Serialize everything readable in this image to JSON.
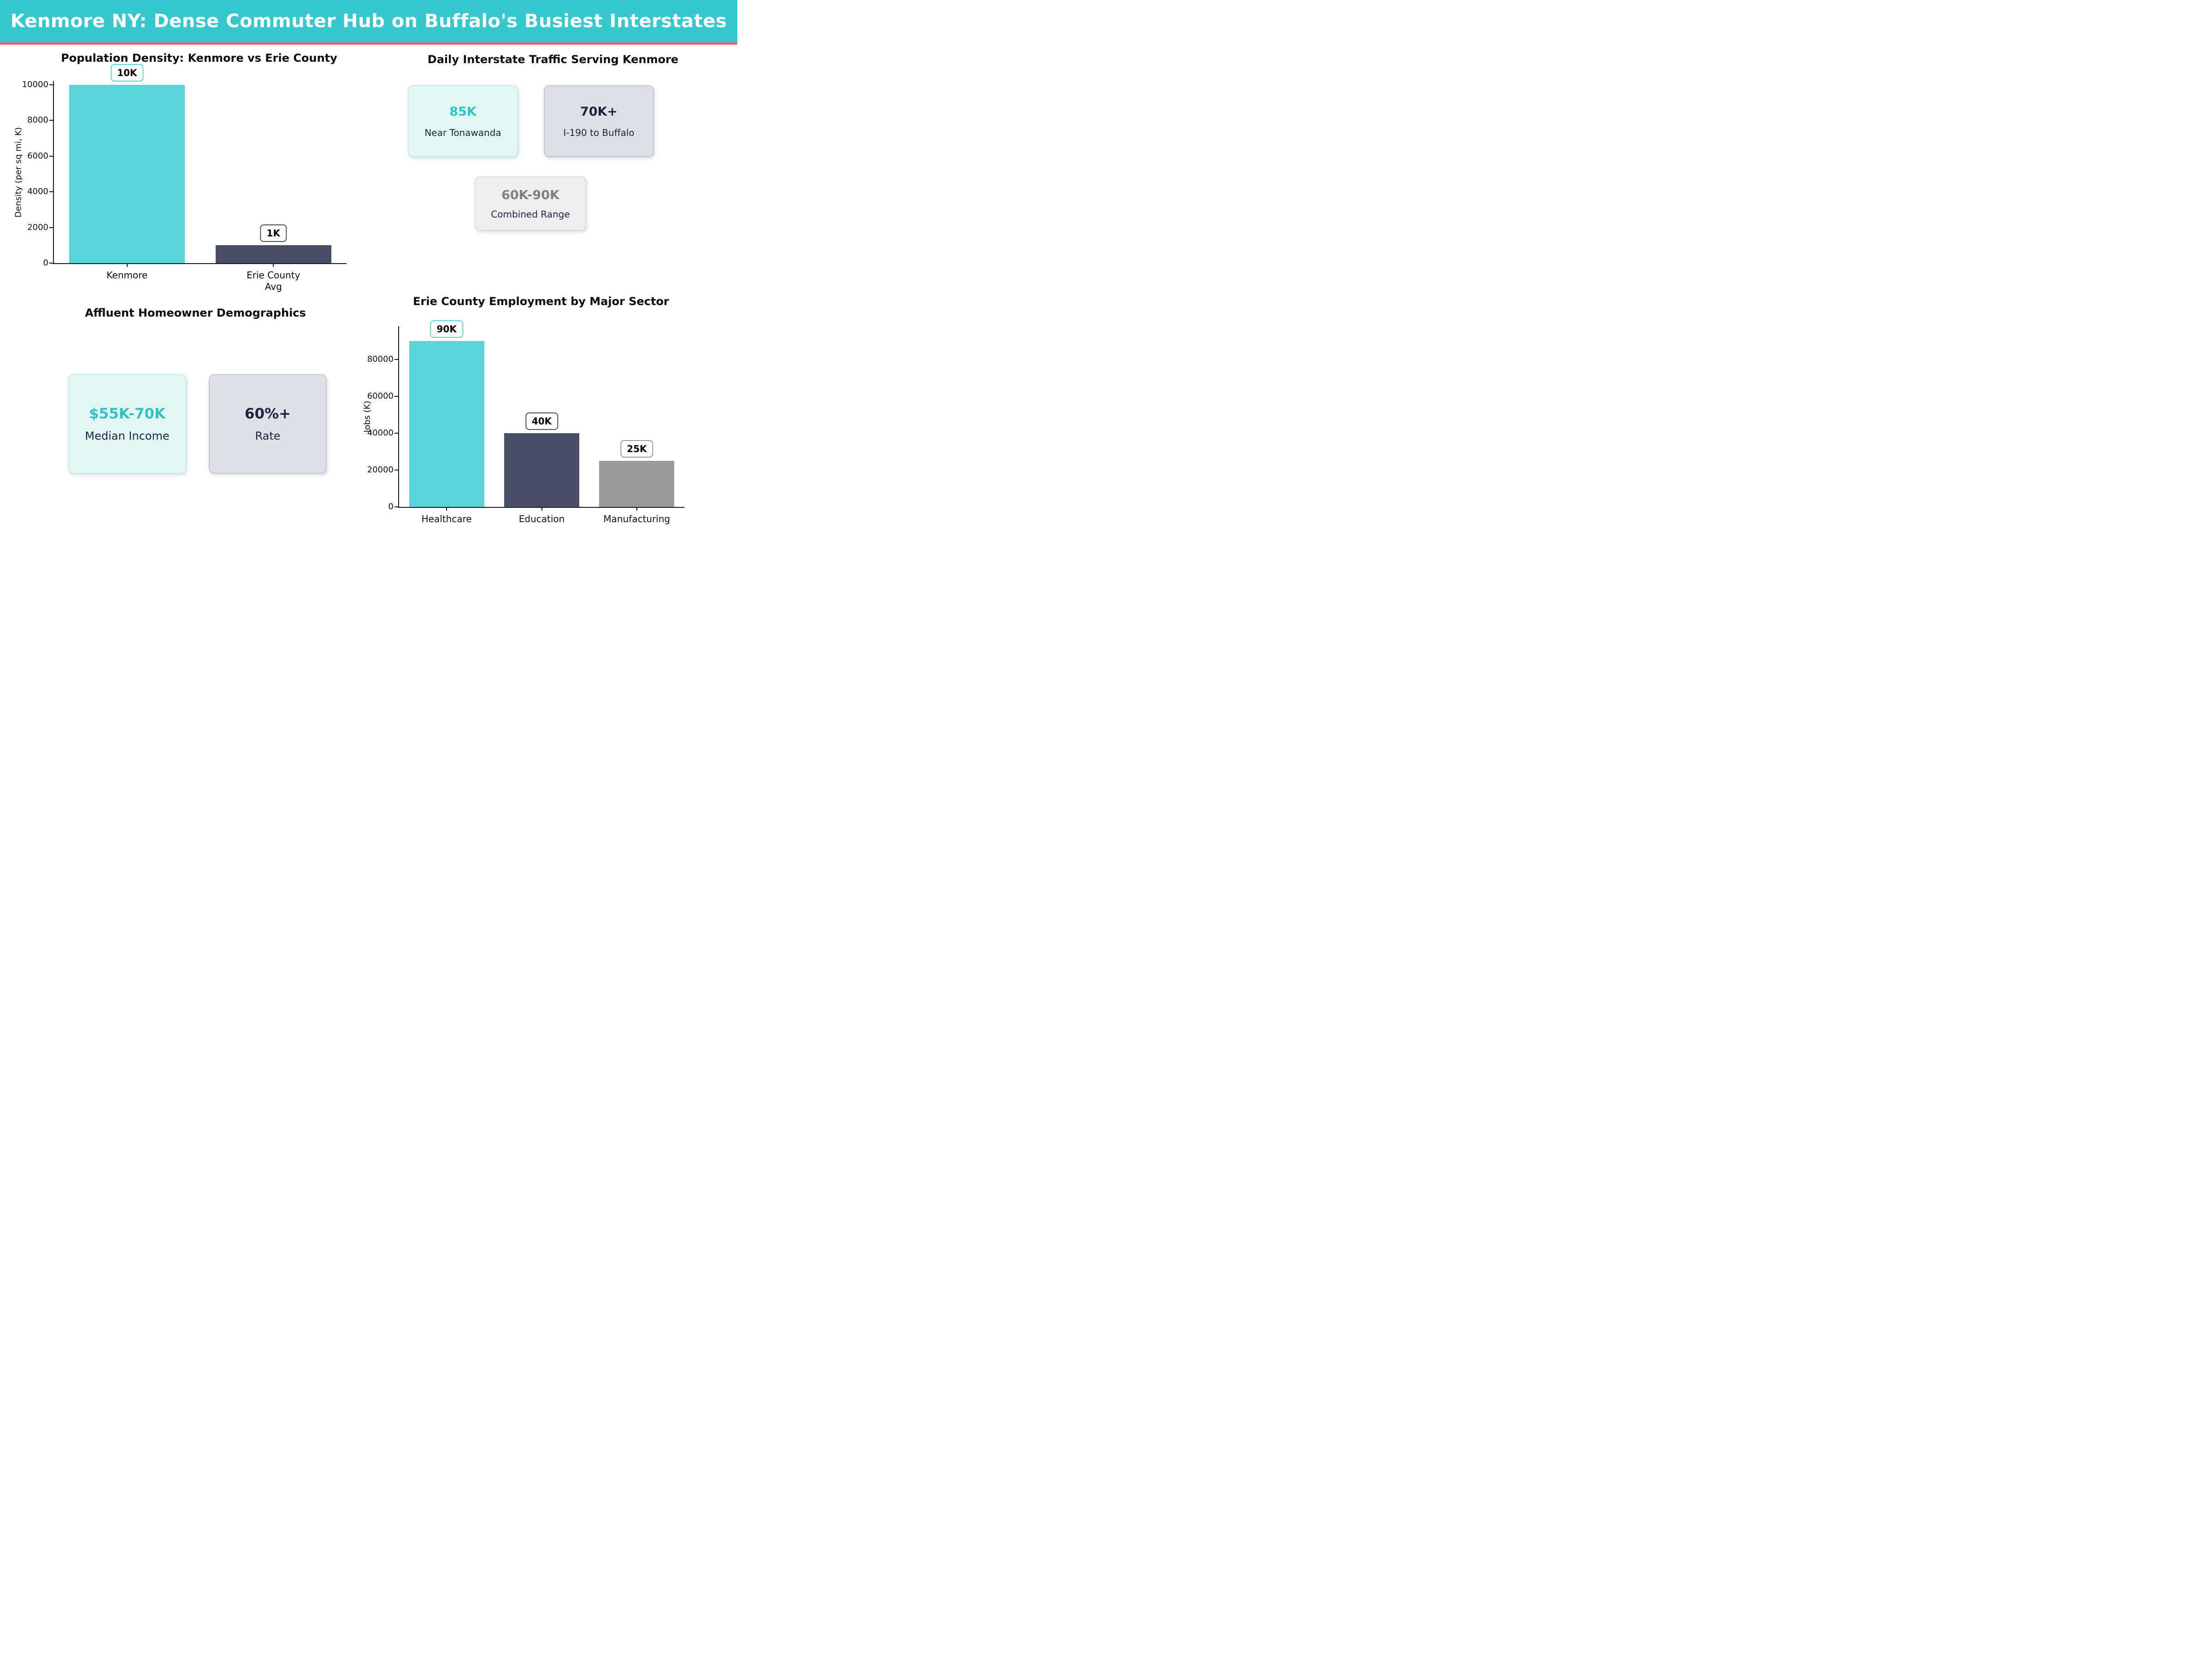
{
  "header": {
    "title": "Kenmore NY: Dense Commuter Hub on Buffalo's Busiest Interstates",
    "bg_color": "#35c8cc",
    "divider_color": "#f05c73"
  },
  "chart_data": [
    {
      "type": "bar",
      "title": "Population Density: Kenmore vs Erie County",
      "ylabel": "Density (per sq mi, K)",
      "xlabel": "",
      "categories": [
        "Kenmore",
        "Erie County\nAvg"
      ],
      "values": [
        10000,
        1000
      ],
      "bar_labels": [
        "10K",
        "1K"
      ],
      "bar_colors": [
        "#5ad4d6",
        "#474e65"
      ],
      "yticks": [
        0,
        2000,
        4000,
        6000,
        8000,
        10000
      ],
      "ylim": [
        0,
        10200
      ],
      "grid": false,
      "legend": null
    },
    {
      "type": "bar",
      "title": "Erie County Employment by Major Sector",
      "ylabel": "Jobs (K)",
      "xlabel": "",
      "categories": [
        "Healthcare",
        "Education",
        "Manufacturing"
      ],
      "values": [
        90000,
        40000,
        25000
      ],
      "bar_labels": [
        "90K",
        "40K",
        "25K"
      ],
      "bar_colors": [
        "#5ad4d6",
        "#474e65",
        "#9a9a9a"
      ],
      "yticks": [
        0,
        20000,
        40000,
        60000,
        80000
      ],
      "ylim": [
        0,
        98000
      ],
      "grid": false,
      "legend": null
    }
  ],
  "panels": [
    {
      "title": "Daily Interstate Traffic Serving Kenmore",
      "cards": [
        {
          "value": "85K",
          "label": "Near Tonawanda",
          "bg": "#e3f7f5",
          "border": "#c3ecea",
          "value_color": "#2ec4c6"
        },
        {
          "value": "70K+",
          "label": "I-190 to Buffalo",
          "bg": "#dfe0e6",
          "border": "#c2c4cf",
          "value_color": "#1b2440"
        },
        {
          "value": "60K-90K",
          "label": "Combined Range",
          "bg": "#efefef",
          "border": "#dcdcdc",
          "value_color": "#808080"
        }
      ]
    },
    {
      "title": "Affluent Homeowner Demographics",
      "cards": [
        {
          "value": "$55K-70K",
          "label": "Median Income",
          "bg": "#e3f7f5",
          "border": "#c3ecea",
          "value_color": "#2ec4c6"
        },
        {
          "value": "60%+",
          "label": "Rate",
          "bg": "#e0e1e6",
          "border": "#c6c8d2",
          "value_color": "#1b2440"
        }
      ]
    }
  ]
}
